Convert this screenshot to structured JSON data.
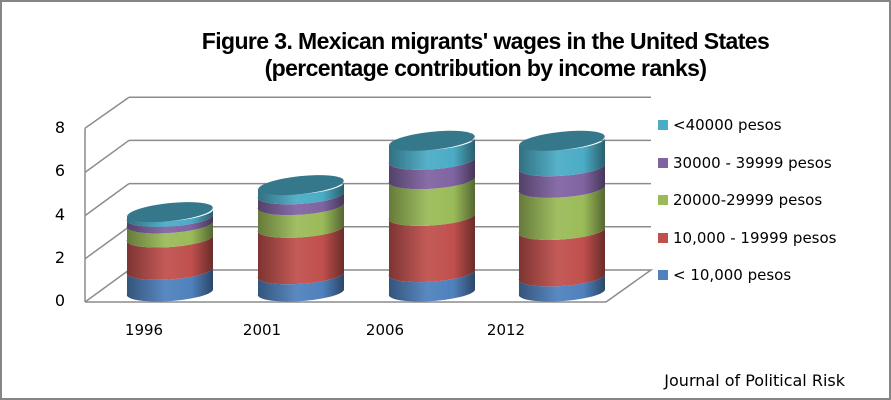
{
  "chart_data": {
    "type": "bar",
    "subtype": "stacked-3d-cylinder",
    "title": "Figure 3. Mexican migrants' wages in the United States",
    "subtitle": "(percentage contribution by income ranks)",
    "categories": [
      "1996",
      "2001",
      "2006",
      "2012"
    ],
    "series": [
      {
        "name": "< 10,000 pesos",
        "color": "#4F81BD",
        "values": [
          1.0,
          0.8,
          0.9,
          0.7
        ]
      },
      {
        "name": "10,000 - 19999 pesos",
        "color": "#C0504D",
        "values": [
          1.5,
          2.15,
          2.6,
          2.15
        ]
      },
      {
        "name": "20000-29999 pesos",
        "color": "#9BBB59",
        "values": [
          0.65,
          1.05,
          1.7,
          1.95
        ]
      },
      {
        "name": "30000 - 39999 pesos",
        "color": "#8064A2",
        "values": [
          0.3,
          0.5,
          0.9,
          1.0
        ]
      },
      {
        "name": "<40000 pesos",
        "color": "#4BACC6",
        "values": [
          0.25,
          0.45,
          0.9,
          1.2
        ]
      }
    ],
    "xlabel": "",
    "ylabel": "",
    "ylim": [
      0,
      8
    ],
    "yticks": [
      "0",
      "2",
      "4",
      "6",
      "8"
    ],
    "grid": true,
    "legend_position": "right"
  },
  "title": {
    "line1": "Figure 3. Mexican migrants' wages in the United States",
    "line2": "(percentage contribution by income ranks)"
  },
  "legend": [
    {
      "label": "<40000 pesos",
      "color": "#4BACC6"
    },
    {
      "label": "30000 - 39999 pesos",
      "color": "#8064A2"
    },
    {
      "label": "20000-29999 pesos",
      "color": "#9BBB59"
    },
    {
      "label": "10,000 - 19999 pesos",
      "color": "#C0504D"
    },
    {
      "label": "< 10,000 pesos",
      "color": "#4F81BD"
    }
  ],
  "source": "Journal of Political Risk"
}
